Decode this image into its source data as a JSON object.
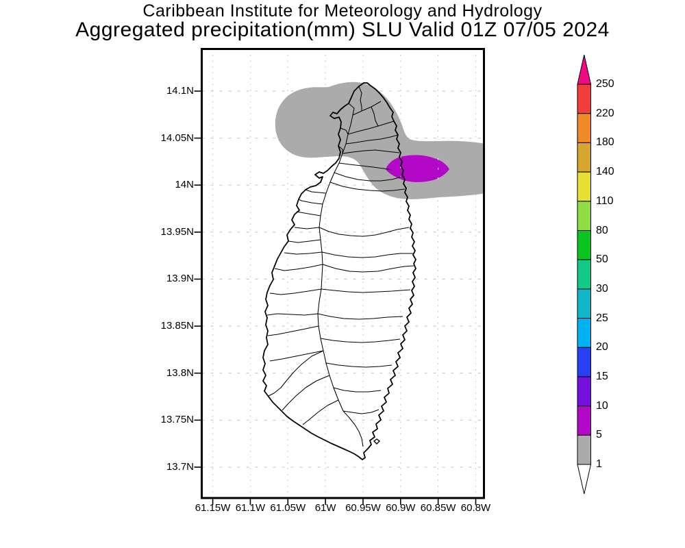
{
  "title": {
    "line1": "Caribbean Institute for Meteorology and Hydrology",
    "line2": "Aggregated precipitation(mm) SLU Valid 01Z 07/05 2024"
  },
  "map": {
    "x_tick_labels": [
      "61.15W",
      "61.1W",
      "61.05W",
      "61W",
      "60.95W",
      "60.9W",
      "60.85W",
      "60.8W"
    ],
    "y_tick_labels": [
      "14.1N",
      "14.05N",
      "14N",
      "13.95N",
      "13.9N",
      "13.85N",
      "13.8N",
      "13.75N",
      "13.7N"
    ],
    "region_shown": "Saint Lucia (SLU)"
  },
  "colorbar": {
    "tick_labels": [
      "250",
      "220",
      "180",
      "140",
      "110",
      "80",
      "50",
      "30",
      "25",
      "20",
      "15",
      "10",
      "5",
      "1"
    ],
    "top_triangle_color": "#f00884",
    "bottom_triangle_color": "#ffffff",
    "segments": [
      {
        "range_mm": "220-250",
        "color": "#f23d3d"
      },
      {
        "range_mm": "180-220",
        "color": "#f08a28"
      },
      {
        "range_mm": "140-180",
        "color": "#d6a62e"
      },
      {
        "range_mm": "110-140",
        "color": "#e6df34"
      },
      {
        "range_mm": "80-110",
        "color": "#90dc44"
      },
      {
        "range_mm": "50-80",
        "color": "#0cc420"
      },
      {
        "range_mm": "30-50",
        "color": "#12c98a"
      },
      {
        "range_mm": "25-30",
        "color": "#10b6c8"
      },
      {
        "range_mm": "20-25",
        "color": "#00b2f0"
      },
      {
        "range_mm": "15-20",
        "color": "#2a3ef2"
      },
      {
        "range_mm": "10-15",
        "color": "#7410dc"
      },
      {
        "range_mm": "5-10",
        "color": "#b408c8"
      },
      {
        "range_mm": "1-5",
        "color": "#ababab"
      }
    ]
  },
  "chart_data": {
    "type": "heatmap",
    "title": "Aggregated precipitation(mm) SLU Valid 01Z 07/05 2024",
    "institution": "Caribbean Institute for Meteorology and Hydrology",
    "region": "SLU",
    "valid_time": "01Z 07/05 2024",
    "x_axis": {
      "tick_labels": [
        "61.15W",
        "61.1W",
        "61.05W",
        "61W",
        "60.95W",
        "60.9W",
        "60.85W",
        "60.8W"
      ],
      "orientation": "longitude west"
    },
    "y_axis": {
      "tick_labels": [
        "14.1N",
        "14.05N",
        "14N",
        "13.95N",
        "13.9N",
        "13.85N",
        "13.8N",
        "13.75N",
        "13.7N"
      ],
      "orientation": "latitude north"
    },
    "contour_levels_mm": [
      1,
      5,
      10,
      15,
      20,
      25,
      30,
      50,
      80,
      110,
      140,
      180,
      220,
      250
    ],
    "palette_low_to_high": [
      "#ffffff",
      "#ababab",
      "#b408c8",
      "#7410dc",
      "#2a3ef2",
      "#00b2f0",
      "#10b6c8",
      "#12c98a",
      "#0cc420",
      "#90dc44",
      "#e6df34",
      "#d6a62e",
      "#f08a28",
      "#f23d3d",
      "#f00884"
    ],
    "filled_regions": [
      {
        "value_mm": "1-5",
        "color": "#ababab",
        "description": "Gray area covering northern Saint Lucia (north of about 13.98N) and a band extending east of the northeast coast to the map edge between about 13.99N and 14.04N"
      },
      {
        "value_mm": "5-10",
        "color": "#b408c8",
        "description": "Purple lens-shaped maximum centered near 14.02N 60.88W over and just offshore the northeast coast"
      }
    ],
    "basemap": "Saint Lucia coastline with watershed/basin boundaries drawn as thin black lines",
    "grid": true,
    "legend_position": "right vertical colorbar with overflow arrows at both ends"
  }
}
